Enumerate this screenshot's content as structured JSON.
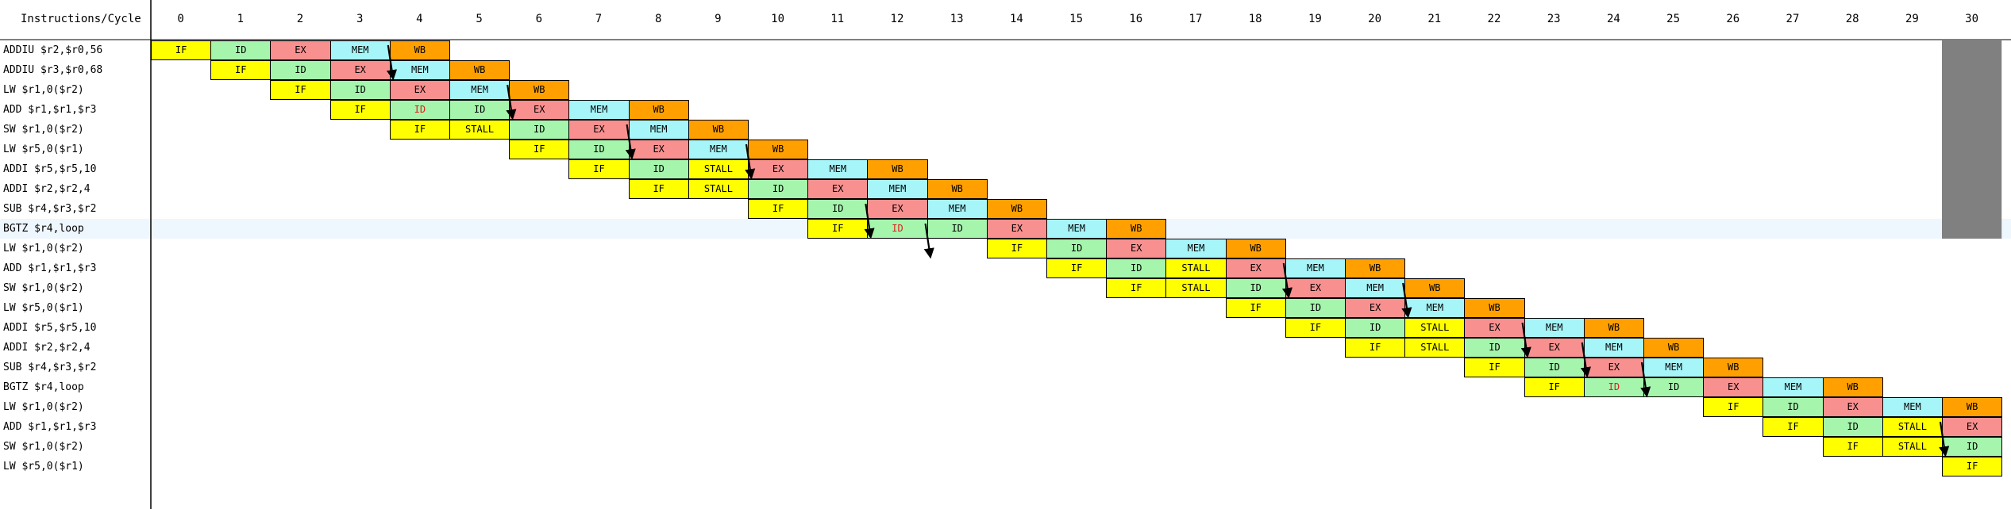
{
  "header": {
    "title": "Instructions/Cycle",
    "cycles": [
      "0",
      "1",
      "2",
      "3",
      "4",
      "5",
      "6",
      "7",
      "8",
      "9",
      "10",
      "11",
      "12",
      "13",
      "14",
      "15",
      "16",
      "17",
      "18",
      "19",
      "20",
      "21",
      "22",
      "23",
      "24",
      "25",
      "26",
      "27",
      "28",
      "29",
      "30"
    ]
  },
  "highlighted_row": 9,
  "current_cycle": "30",
  "colors": {
    "IF": "#ffff00",
    "ID": "#a5f5ad",
    "EX": "#f99090",
    "MEM": "#a6f5f9",
    "WB": "#ffa000",
    "STALL_IF": "#ffff00",
    "highlight_row": "#eef6fe",
    "current_column": "#808080",
    "red_text": "#e21b1b"
  },
  "instructions": [
    {
      "text": "ADDIU $r2,$r0,56",
      "start": 0,
      "stages": [
        "IF",
        "ID",
        "EX",
        "MEM",
        "WB"
      ]
    },
    {
      "text": "ADDIU $r3,$r0,68",
      "start": 1,
      "stages": [
        "IF",
        "ID",
        "EX",
        "MEM",
        "WB"
      ]
    },
    {
      "text": "LW $r1,0($r2)",
      "start": 2,
      "stages": [
        "IF",
        "ID",
        "EX",
        "MEM",
        "WB"
      ]
    },
    {
      "text": "ADD $r1,$r1,$r3",
      "start": 3,
      "stages": [
        "IF",
        "ID*",
        "ID",
        "EX",
        "MEM",
        "WB"
      ]
    },
    {
      "text": "SW $r1,0($r2)",
      "start": 4,
      "stages": [
        "IF",
        "STALL",
        "ID",
        "EX",
        "MEM",
        "WB"
      ]
    },
    {
      "text": "LW $r5,0($r1)",
      "start": 6,
      "stages": [
        "IF",
        "ID",
        "EX",
        "MEM",
        "WB"
      ]
    },
    {
      "text": "ADDI $r5,$r5,10",
      "start": 7,
      "stages": [
        "IF",
        "ID",
        "STALL",
        "EX",
        "MEM",
        "WB"
      ]
    },
    {
      "text": "ADDI $r2,$r2,4",
      "start": 8,
      "stages": [
        "IF",
        "STALL",
        "ID",
        "EX",
        "MEM",
        "WB"
      ]
    },
    {
      "text": "SUB $r4,$r3,$r2",
      "start": 10,
      "stages": [
        "IF",
        "ID",
        "EX",
        "MEM",
        "WB"
      ]
    },
    {
      "text": "BGTZ $r4,loop",
      "start": 11,
      "stages": [
        "IF",
        "ID*",
        "ID",
        "EX",
        "MEM",
        "WB"
      ]
    },
    {
      "text": "LW $r1,0($r2)",
      "start": 14,
      "stages": [
        "IF",
        "ID",
        "EX",
        "MEM",
        "WB"
      ]
    },
    {
      "text": "ADD $r1,$r1,$r3",
      "start": 15,
      "stages": [
        "IF",
        "ID",
        "STALL",
        "EX",
        "MEM",
        "WB"
      ]
    },
    {
      "text": "SW $r1,0($r2)",
      "start": 16,
      "stages": [
        "IF",
        "STALL",
        "ID",
        "EX",
        "MEM",
        "WB"
      ]
    },
    {
      "text": "LW $r5,0($r1)",
      "start": 18,
      "stages": [
        "IF",
        "ID",
        "EX",
        "MEM",
        "WB"
      ]
    },
    {
      "text": "ADDI $r5,$r5,10",
      "start": 19,
      "stages": [
        "IF",
        "ID",
        "STALL",
        "EX",
        "MEM",
        "WB"
      ]
    },
    {
      "text": "ADDI $r2,$r2,4",
      "start": 20,
      "stages": [
        "IF",
        "STALL",
        "ID",
        "EX",
        "MEM",
        "WB"
      ]
    },
    {
      "text": "SUB $r4,$r3,$r2",
      "start": 22,
      "stages": [
        "IF",
        "ID",
        "EX",
        "MEM",
        "WB"
      ]
    },
    {
      "text": "BGTZ $r4,loop",
      "start": 23,
      "stages": [
        "IF",
        "ID*",
        "ID",
        "EX",
        "MEM",
        "WB"
      ]
    },
    {
      "text": "LW $r1,0($r2)",
      "start": 26,
      "stages": [
        "IF",
        "ID",
        "EX",
        "MEM",
        "WB"
      ]
    },
    {
      "text": "ADD $r1,$r1,$r3",
      "start": 27,
      "stages": [
        "IF",
        "ID",
        "STALL",
        "EX"
      ]
    },
    {
      "text": "SW $r1,0($r2)",
      "start": 28,
      "stages": [
        "IF",
        "STALL",
        "ID"
      ]
    },
    {
      "text": "LW $r5,0($r1)",
      "start": 30,
      "stages": [
        "IF"
      ]
    }
  ],
  "forwarding_arrows": [
    {
      "from_row": 0,
      "from_cycle": 3,
      "to_row": 1,
      "to_cycle": 4
    },
    {
      "from_row": 2,
      "from_cycle": 5,
      "to_row": 3,
      "to_cycle": 6
    },
    {
      "from_row": 4,
      "from_cycle": 7,
      "to_row": 5,
      "to_cycle": 8
    },
    {
      "from_row": 5,
      "from_cycle": 9,
      "to_row": 6,
      "to_cycle": 10
    },
    {
      "from_row": 8,
      "from_cycle": 11,
      "to_row": 9,
      "to_cycle": 12
    },
    {
      "from_row": 9,
      "from_cycle": 12,
      "to_row": 10,
      "to_cycle": 13
    },
    {
      "from_row": 11,
      "from_cycle": 18,
      "to_row": 12,
      "to_cycle": 19
    },
    {
      "from_row": 12,
      "from_cycle": 20,
      "to_row": 13,
      "to_cycle": 21
    },
    {
      "from_row": 14,
      "from_cycle": 22,
      "to_row": 15,
      "to_cycle": 23
    },
    {
      "from_row": 15,
      "from_cycle": 23,
      "to_row": 16,
      "to_cycle": 24
    },
    {
      "from_row": 16,
      "from_cycle": 24,
      "to_row": 17,
      "to_cycle": 25
    },
    {
      "from_row": 19,
      "from_cycle": 29,
      "to_row": 20,
      "to_cycle": 30
    }
  ]
}
